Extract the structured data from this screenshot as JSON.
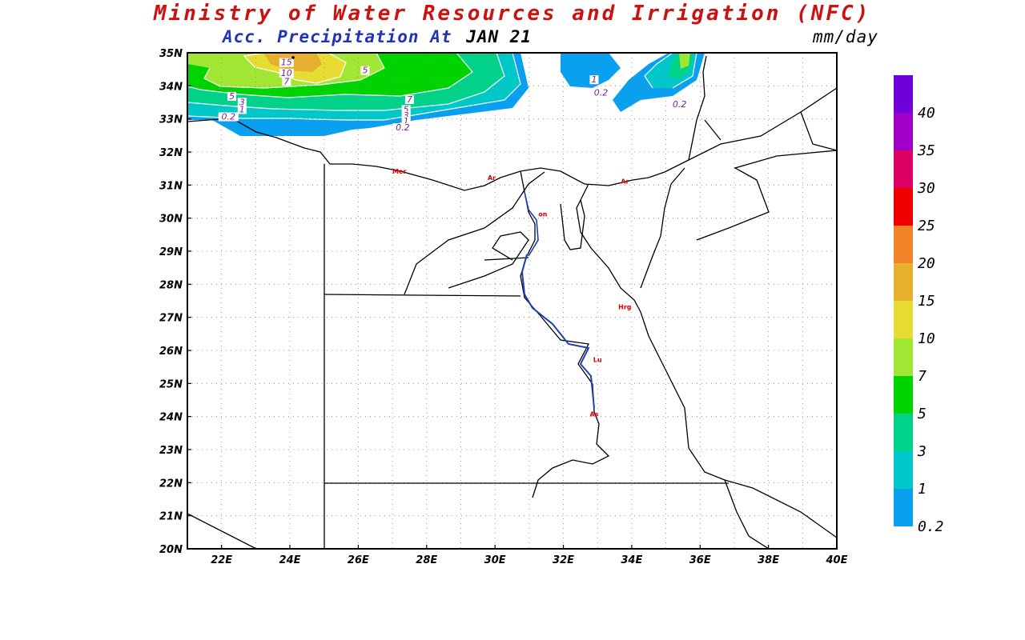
{
  "header": {
    "title": "Ministry of Water Resources and Irrigation (NFC)",
    "title_color": "#cc1111",
    "subtitle": "Acc. Precipitation  At",
    "subtitle_color": "#2233bb",
    "date": "JAN 21",
    "units": "mm/day"
  },
  "map": {
    "lat_labels": [
      "35N",
      "34N",
      "33N",
      "32N",
      "31N",
      "30N",
      "29N",
      "28N",
      "27N",
      "26N",
      "25N",
      "24N",
      "23N",
      "22N",
      "21N",
      "20N"
    ],
    "lon_labels": [
      "22E",
      "24E",
      "26E",
      "28E",
      "30E",
      "32E",
      "34E",
      "36E",
      "38E",
      "40E"
    ],
    "contour_labels": [
      {
        "text": "15",
        "lon": 23.9,
        "lat": 34.62
      },
      {
        "text": "10",
        "lon": 23.9,
        "lat": 34.3
      },
      {
        "text": "7",
        "lon": 23.9,
        "lat": 34.05
      },
      {
        "text": "5",
        "lon": 26.2,
        "lat": 34.38
      },
      {
        "text": "5",
        "lon": 22.3,
        "lat": 33.6
      },
      {
        "text": "3",
        "lon": 22.6,
        "lat": 33.42
      },
      {
        "text": "1",
        "lon": 22.6,
        "lat": 33.2
      },
      {
        "text": "0.2",
        "lon": 22.2,
        "lat": 32.98
      },
      {
        "text": "7",
        "lon": 27.5,
        "lat": 33.5
      },
      {
        "text": "5",
        "lon": 27.4,
        "lat": 33.2
      },
      {
        "text": "3",
        "lon": 27.4,
        "lat": 33.02
      },
      {
        "text": "1",
        "lon": 27.4,
        "lat": 32.85
      },
      {
        "text": "0.2",
        "lon": 27.3,
        "lat": 32.65
      },
      {
        "text": "1",
        "lon": 32.9,
        "lat": 34.1
      },
      {
        "text": "0.2",
        "lon": 33.1,
        "lat": 33.7
      },
      {
        "text": "0.2",
        "lon": 35.4,
        "lat": 33.35
      }
    ],
    "cities": [
      {
        "label": "Mer",
        "lon": 27.2,
        "lat": 31.35
      },
      {
        "label": "Ar",
        "lon": 29.9,
        "lat": 31.15
      },
      {
        "label": "Ar",
        "lon": 33.8,
        "lat": 31.05
      },
      {
        "label": "on",
        "lon": 31.4,
        "lat": 30.05
      },
      {
        "label": "Hrg",
        "lon": 33.8,
        "lat": 27.25
      },
      {
        "label": "Lu",
        "lon": 33.0,
        "lat": 25.65
      },
      {
        "label": "As",
        "lon": 32.9,
        "lat": 24.0
      }
    ]
  },
  "colorbar": {
    "labels": [
      "0.2",
      "1",
      "3",
      "5",
      "7",
      "10",
      "15",
      "20",
      "25",
      "30",
      "35",
      "40"
    ],
    "colors": [
      "#0aa0f0",
      "#00c8c8",
      "#00d28a",
      "#00d400",
      "#a0e632",
      "#e6dc32",
      "#e6af2d",
      "#f08228",
      "#f00000",
      "#dc0064",
      "#a000c8",
      "#6e00dc"
    ]
  }
}
